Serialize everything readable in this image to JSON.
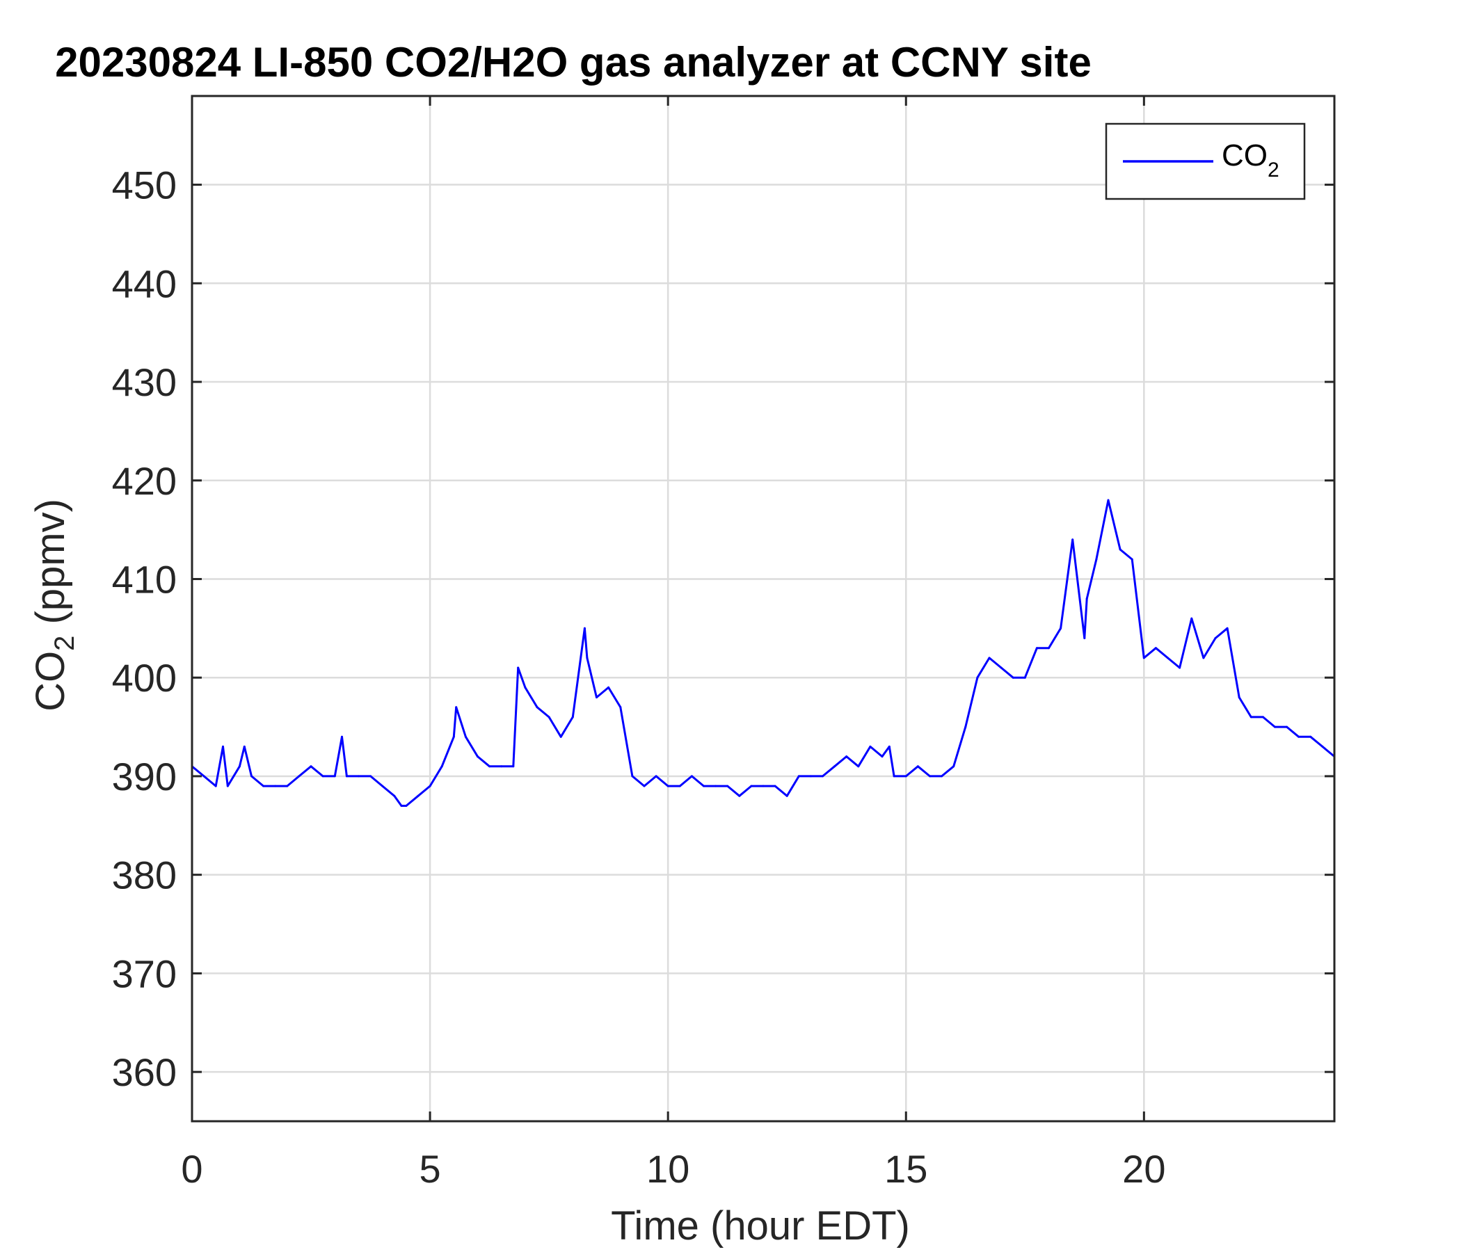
{
  "chart_data": {
    "type": "line",
    "title": "20230824 LI-850 CO2/H2O gas analyzer at CCNY site",
    "xlabel": "Time (hour EDT)",
    "ylabel": {
      "main": "CO",
      "sub": "2",
      "rest": " (ppmv)"
    },
    "xlim": [
      0,
      24
    ],
    "ylim": [
      355,
      459
    ],
    "xticks": [
      0,
      5,
      10,
      15,
      20
    ],
    "yticks": [
      360,
      370,
      380,
      390,
      400,
      410,
      420,
      430,
      440,
      450
    ],
    "xtick_labels": [
      "0",
      "5",
      "10",
      "15",
      "20"
    ],
    "ytick_labels": [
      "360",
      "370",
      "380",
      "390",
      "400",
      "410",
      "420",
      "430",
      "440",
      "450"
    ],
    "grid": true,
    "legend_position": "top-right",
    "legend": [
      {
        "main": "CO",
        "sub": "2"
      }
    ],
    "series": [
      {
        "name": "CO2",
        "color": "#0000FF",
        "x": [
          0.0,
          0.25,
          0.5,
          0.65,
          0.75,
          1.0,
          1.1,
          1.25,
          1.5,
          1.75,
          2.0,
          2.25,
          2.5,
          2.75,
          3.0,
          3.15,
          3.25,
          3.5,
          3.75,
          4.0,
          4.25,
          4.4,
          4.5,
          4.75,
          5.0,
          5.25,
          5.5,
          5.55,
          5.75,
          6.0,
          6.25,
          6.5,
          6.75,
          6.85,
          7.0,
          7.25,
          7.5,
          7.75,
          8.0,
          8.25,
          8.3,
          8.5,
          8.75,
          9.0,
          9.25,
          9.5,
          9.75,
          10.0,
          10.25,
          10.5,
          10.75,
          11.0,
          11.25,
          11.5,
          11.75,
          12.0,
          12.25,
          12.5,
          12.75,
          13.0,
          13.25,
          13.5,
          13.75,
          14.0,
          14.25,
          14.5,
          14.65,
          14.75,
          15.0,
          15.25,
          15.5,
          15.75,
          16.0,
          16.25,
          16.5,
          16.75,
          17.0,
          17.25,
          17.5,
          17.75,
          18.0,
          18.25,
          18.5,
          18.75,
          18.8,
          19.0,
          19.25,
          19.5,
          19.75,
          20.0,
          20.25,
          20.5,
          20.75,
          21.0,
          21.25,
          21.5,
          21.75,
          22.0,
          22.25,
          22.5,
          22.75,
          23.0,
          23.25,
          23.5,
          23.75,
          24.0
        ],
        "values": [
          391,
          390,
          389,
          393,
          389,
          391,
          393,
          390,
          389,
          389,
          389,
          390,
          391,
          390,
          390,
          394,
          390,
          390,
          390,
          389,
          388,
          387,
          387,
          388,
          389,
          391,
          394,
          397,
          394,
          392,
          391,
          391,
          391,
          401,
          399,
          397,
          396,
          394,
          396,
          405,
          402,
          398,
          399,
          397,
          390,
          389,
          390,
          389,
          389,
          390,
          389,
          389,
          389,
          388,
          389,
          389,
          389,
          388,
          390,
          390,
          390,
          391,
          392,
          391,
          393,
          392,
          393,
          390,
          390,
          391,
          390,
          390,
          391,
          395,
          400,
          402,
          401,
          400,
          400,
          403,
          403,
          405,
          414,
          404,
          408,
          412,
          418,
          413,
          412,
          402,
          403,
          402,
          401,
          406,
          402,
          404,
          405,
          398,
          396,
          396,
          395,
          395,
          394,
          394,
          393,
          392
        ]
      }
    ]
  }
}
